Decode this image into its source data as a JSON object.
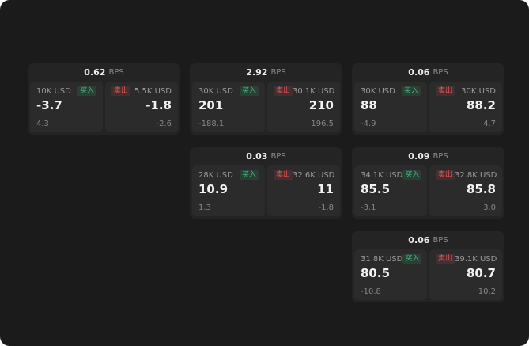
{
  "labels": {
    "bps": "BPS",
    "buy": "买入",
    "sell": "卖出"
  },
  "colors": {
    "buy": "#3dbe7b",
    "sell": "#e05555",
    "background": "#1b1b1b",
    "card": "#242424",
    "panel": "#2b2b2b"
  },
  "cards": [
    {
      "bps": "0.62",
      "buy": {
        "amount": "10K USD",
        "value": "-3.7",
        "sub": "4.3"
      },
      "sell": {
        "amount": "5.5K USD",
        "value": "-1.8",
        "sub": "-2.6"
      }
    },
    {
      "bps": "2.92",
      "buy": {
        "amount": "30K USD",
        "value": "201",
        "sub": "-188.1"
      },
      "sell": {
        "amount": "30.1K USD",
        "value": "210",
        "sub": "196.5"
      }
    },
    {
      "bps": "0.06",
      "buy": {
        "amount": "30K USD",
        "value": "88",
        "sub": "-4.9"
      },
      "sell": {
        "amount": "30K USD",
        "value": "88.2",
        "sub": "4.7"
      }
    },
    {
      "bps": "0.03",
      "buy": {
        "amount": "28K USD",
        "value": "10.9",
        "sub": "1.3"
      },
      "sell": {
        "amount": "32.6K USD",
        "value": "11",
        "sub": "-1.8"
      }
    },
    {
      "bps": "0.09",
      "buy": {
        "amount": "34.1K USD",
        "value": "85.5",
        "sub": "-3.1"
      },
      "sell": {
        "amount": "32.8K USD",
        "value": "85.8",
        "sub": "3.0"
      }
    },
    {
      "bps": "0.06",
      "buy": {
        "amount": "31.8K USD",
        "value": "80.5",
        "sub": "-10.8"
      },
      "sell": {
        "amount": "39.1K USD",
        "value": "80.7",
        "sub": "10.2"
      }
    }
  ]
}
